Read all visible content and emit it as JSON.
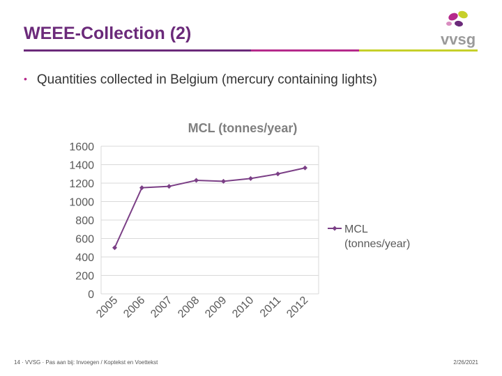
{
  "slide": {
    "title": "WEEE-Collection (2)",
    "bullet": "Quantities collected in Belgium (mercury containing lights)",
    "logo_text": "vvsg"
  },
  "footer": {
    "page_number": "14",
    "org": "VVSG",
    "note": "Pas aan bij: Invoegen / Koptekst en Voettekst",
    "date": "2/26/2021"
  },
  "colors": {
    "title": "#6b2a7a",
    "series": "#7b3f86",
    "rule_purple": "#6b2a7a",
    "rule_magenta": "#b52a8b",
    "rule_green": "#c6d02a"
  },
  "chart_data": {
    "type": "line",
    "title": "MCL (tonnes/year)",
    "categories": [
      "2005",
      "2006",
      "2007",
      "2008",
      "2009",
      "2010",
      "2011",
      "2012"
    ],
    "series": [
      {
        "name": "MCL (tonnes/year)",
        "values": [
          500,
          1150,
          1165,
          1230,
          1220,
          1250,
          1300,
          1365
        ]
      }
    ],
    "ylim": [
      0,
      1600
    ],
    "yticks": [
      0,
      200,
      400,
      600,
      800,
      1000,
      1200,
      1400,
      1600
    ],
    "grid": true,
    "legend": "right",
    "marker": "diamond"
  }
}
